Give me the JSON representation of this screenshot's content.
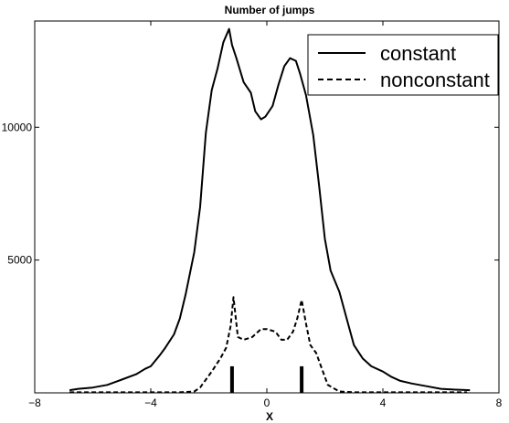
{
  "chart_data": {
    "type": "line",
    "title": "Number of jumps",
    "xlabel": "X",
    "ylabel": "",
    "xlim": [
      -8,
      8
    ],
    "ylim": [
      0,
      14000
    ],
    "xticks": [
      -8,
      -4,
      0,
      4,
      8
    ],
    "yticks": [
      5000,
      10000
    ],
    "xtick_labels": [
      "−8",
      "−4",
      "0",
      "4",
      "8"
    ],
    "ytick_labels": [
      "5000",
      "10000"
    ],
    "grid": false,
    "legend": {
      "placement": "top-right",
      "entries": [
        {
          "label": "constant",
          "style": "solid"
        },
        {
          "label": "nonconstant",
          "style": "dashed"
        }
      ]
    },
    "series": [
      {
        "name": "constant",
        "style": "solid",
        "color": "#000000",
        "x": [
          -6.8,
          -6.5,
          -6.0,
          -5.5,
          -5.0,
          -4.5,
          -4.2,
          -4.0,
          -3.7,
          -3.5,
          -3.2,
          -3.0,
          -2.8,
          -2.5,
          -2.3,
          -2.1,
          -1.9,
          -1.7,
          -1.5,
          -1.3,
          -1.2,
          -1.05,
          -0.8,
          -0.55,
          -0.4,
          -0.2,
          -0.05,
          0.2,
          0.4,
          0.6,
          0.8,
          1.0,
          1.15,
          1.35,
          1.6,
          1.8,
          2.0,
          2.2,
          2.5,
          2.8,
          3.0,
          3.3,
          3.6,
          4.0,
          4.3,
          4.6,
          5.0,
          5.5,
          6.0,
          6.5,
          7.0
        ],
        "y": [
          100,
          150,
          200,
          300,
          500,
          700,
          900,
          1000,
          1400,
          1700,
          2200,
          2800,
          3700,
          5300,
          7000,
          9800,
          11400,
          12200,
          13200,
          13700,
          13100,
          12600,
          11700,
          11300,
          10600,
          10300,
          10400,
          10800,
          11600,
          12300,
          12600,
          12500,
          12000,
          11200,
          9700,
          7800,
          5800,
          4600,
          3800,
          2600,
          1800,
          1300,
          1000,
          800,
          600,
          450,
          350,
          250,
          150,
          120,
          100
        ]
      },
      {
        "name": "nonconstant",
        "style": "dashed",
        "color": "#000000",
        "x": [
          -6.8,
          -5.0,
          -4.0,
          -3.0,
          -2.5,
          -2.3,
          -2.1,
          -1.9,
          -1.6,
          -1.4,
          -1.25,
          -1.15,
          -1.0,
          -0.8,
          -0.5,
          -0.2,
          0.0,
          0.3,
          0.5,
          0.7,
          0.9,
          1.05,
          1.2,
          1.35,
          1.5,
          1.7,
          1.9,
          2.1,
          2.5,
          3.0,
          4.0,
          5.0,
          6.0,
          6.9
        ],
        "y": [
          20,
          20,
          20,
          20,
          50,
          200,
          500,
          800,
          1300,
          1700,
          2500,
          3600,
          2100,
          2000,
          2100,
          2400,
          2400,
          2300,
          2000,
          2000,
          2300,
          2800,
          3500,
          2600,
          1800,
          1500,
          900,
          300,
          50,
          20,
          20,
          20,
          20,
          20
        ]
      }
    ],
    "bars": [
      {
        "x": -1.2,
        "height": 1000
      },
      {
        "x": 1.2,
        "height": 1000
      }
    ]
  }
}
